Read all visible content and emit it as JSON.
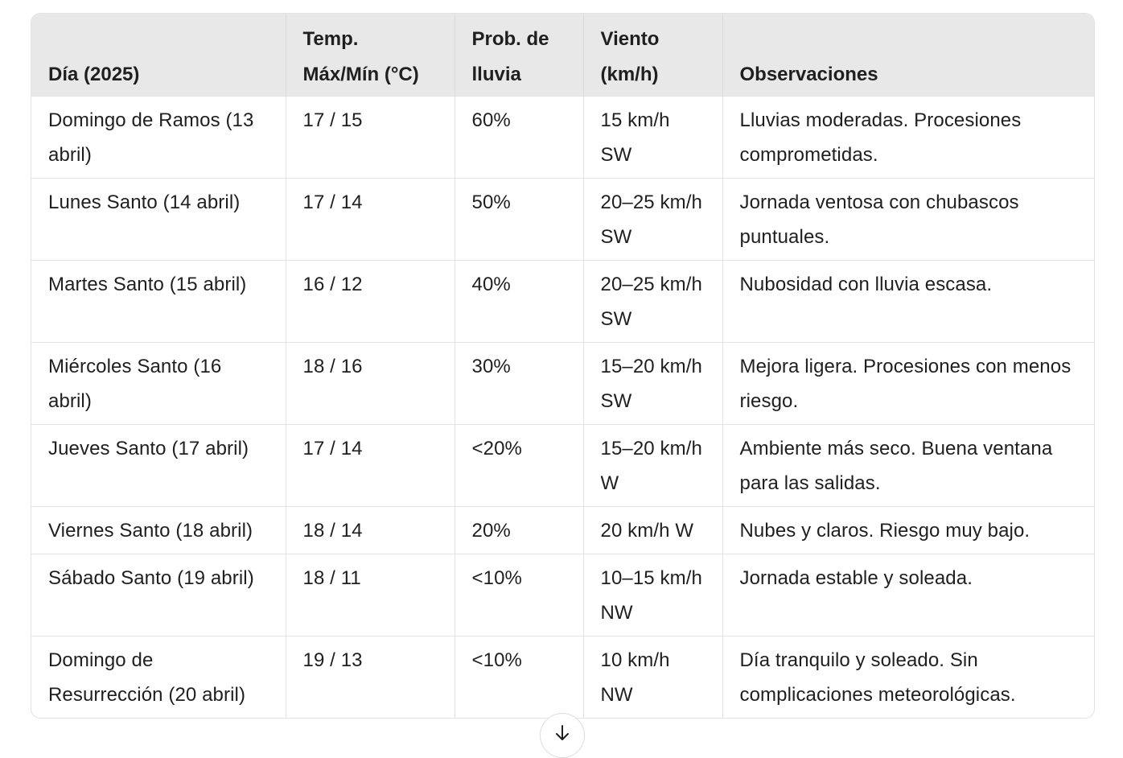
{
  "table": {
    "headers": [
      "Día (2025)",
      "Temp. Máx/Mín (°C)",
      "Prob. de lluvia",
      "Viento (km/h)",
      "Observaciones"
    ],
    "rows": [
      [
        "Domingo de Ramos (13 abril)",
        "17 / 15",
        "60%",
        "15 km/h SW",
        "Lluvias moderadas. Procesiones comprometidas."
      ],
      [
        "Lunes Santo (14 abril)",
        "17 / 14",
        "50%",
        "20–25 km/h SW",
        "Jornada ventosa con chubascos puntuales."
      ],
      [
        "Martes Santo (15 abril)",
        "16 / 12",
        "40%",
        "20–25 km/h SW",
        "Nubosidad con lluvia escasa."
      ],
      [
        "Miércoles Santo (16 abril)",
        "18 / 16",
        "30%",
        "15–20 km/h SW",
        "Mejora ligera. Procesiones con menos riesgo."
      ],
      [
        "Jueves Santo (17 abril)",
        "17 / 14",
        "<20%",
        "15–20 km/h W",
        "Ambiente más seco. Buena ventana para las salidas."
      ],
      [
        "Viernes Santo (18 abril)",
        "18 / 14",
        "20%",
        "20 km/h W",
        "Nubes y claros. Riesgo muy bajo."
      ],
      [
        "Sábado Santo (19 abril)",
        "18 / 11",
        "<10%",
        "10–15 km/h NW",
        "Jornada estable y soleada."
      ],
      [
        "Domingo de Resurrección (20 abril)",
        "19 / 13",
        "<10%",
        "10 km/h NW",
        "Día tranquilo y soleado. Sin complicaciones meteorológicas."
      ]
    ]
  },
  "scroll_button": {
    "icon": "arrow-down-icon"
  }
}
